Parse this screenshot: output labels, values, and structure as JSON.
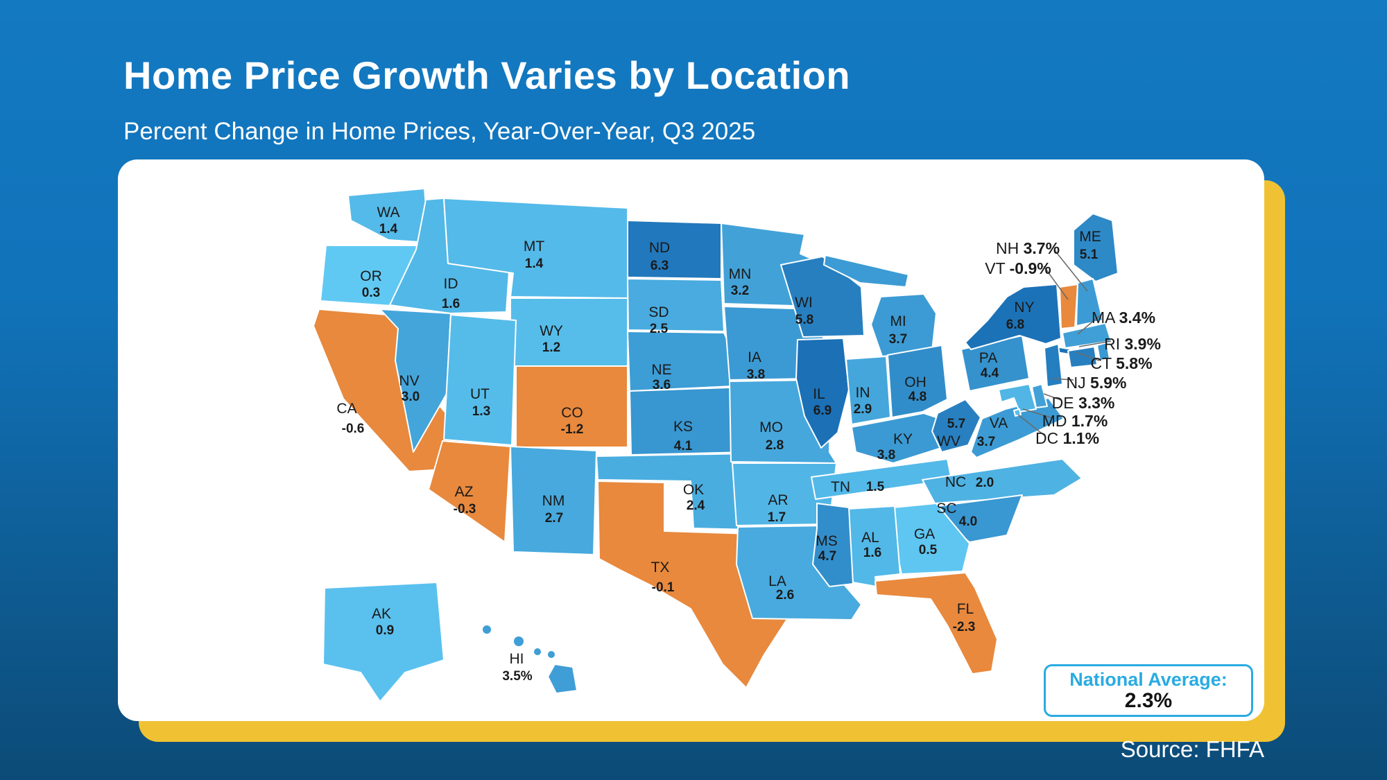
{
  "header": {
    "title": "Home Price Growth Varies by Location",
    "subtitle": "Percent Change in Home Prices, Year-Over-Year, Q3 2025"
  },
  "footer": {
    "source": "Source: FHFA"
  },
  "national_average_box": {
    "label": "National Average:",
    "value": "2.3%"
  },
  "colors": {
    "background_top": "#1379C1",
    "background_bottom": "#0C4B77",
    "card": "#FFFFFF",
    "gold_shadow": "#F0C233",
    "accent_blue": "#29ABE2",
    "negative_orange": "#E8893D",
    "scale_low": "#63CDF6",
    "scale_high": "#1A6FB5",
    "label_text": "#1A1A1A",
    "leader_line": "#6B6B6B"
  },
  "chart_data": {
    "type": "choropleth",
    "title": "Home Price Growth Varies by Location",
    "subtitle": "Percent Change in Home Prices, Year-Over-Year, Q3 2025",
    "unit": "percent change year-over-year",
    "national_average": 2.3,
    "source": "FHFA",
    "color_scale": {
      "negative": "#E8893D",
      "low": "#63CDF6",
      "high": "#1A6FB5",
      "domain": [
        0,
        7
      ]
    },
    "states": [
      {
        "abbr": "WA",
        "value": 1.4,
        "display": "1.4"
      },
      {
        "abbr": "OR",
        "value": 0.3,
        "display": "0.3"
      },
      {
        "abbr": "CA",
        "value": -0.6,
        "display": "-0.6"
      },
      {
        "abbr": "NV",
        "value": 3.0,
        "display": "3.0"
      },
      {
        "abbr": "ID",
        "value": 1.6,
        "display": "1.6"
      },
      {
        "abbr": "MT",
        "value": 1.4,
        "display": "1.4"
      },
      {
        "abbr": "WY",
        "value": 1.2,
        "display": "1.2"
      },
      {
        "abbr": "UT",
        "value": 1.3,
        "display": "1.3"
      },
      {
        "abbr": "CO",
        "value": -1.2,
        "display": "-1.2"
      },
      {
        "abbr": "AZ",
        "value": -0.3,
        "display": "-0.3"
      },
      {
        "abbr": "NM",
        "value": 2.7,
        "display": "2.7"
      },
      {
        "abbr": "ND",
        "value": 6.3,
        "display": "6.3"
      },
      {
        "abbr": "SD",
        "value": 2.5,
        "display": "2.5"
      },
      {
        "abbr": "NE",
        "value": 3.6,
        "display": "3.6"
      },
      {
        "abbr": "KS",
        "value": 4.1,
        "display": "4.1"
      },
      {
        "abbr": "OK",
        "value": 2.4,
        "display": "2.4"
      },
      {
        "abbr": "TX",
        "value": -0.1,
        "display": "-0.1"
      },
      {
        "abbr": "MN",
        "value": 3.2,
        "display": "3.2"
      },
      {
        "abbr": "IA",
        "value": 3.8,
        "display": "3.8"
      },
      {
        "abbr": "MO",
        "value": 2.8,
        "display": "2.8"
      },
      {
        "abbr": "AR",
        "value": 1.7,
        "display": "1.7"
      },
      {
        "abbr": "LA",
        "value": 2.6,
        "display": "2.6"
      },
      {
        "abbr": "WI",
        "value": 5.8,
        "display": "5.8"
      },
      {
        "abbr": "IL",
        "value": 6.9,
        "display": "6.9"
      },
      {
        "abbr": "IN",
        "value": 2.9,
        "display": "2.9"
      },
      {
        "abbr": "MI",
        "value": 3.7,
        "display": "3.7"
      },
      {
        "abbr": "OH",
        "value": 4.8,
        "display": "4.8"
      },
      {
        "abbr": "KY",
        "value": 3.8,
        "display": "3.8"
      },
      {
        "abbr": "TN",
        "value": 1.5,
        "display": "1.5"
      },
      {
        "abbr": "MS",
        "value": 4.7,
        "display": "4.7"
      },
      {
        "abbr": "AL",
        "value": 1.6,
        "display": "1.6"
      },
      {
        "abbr": "GA",
        "value": 0.5,
        "display": "0.5"
      },
      {
        "abbr": "FL",
        "value": -2.3,
        "display": "-2.3"
      },
      {
        "abbr": "SC",
        "value": 4.0,
        "display": "4.0"
      },
      {
        "abbr": "NC",
        "value": 2.0,
        "display": "2.0"
      },
      {
        "abbr": "VA",
        "value": 3.7,
        "display": "3.7"
      },
      {
        "abbr": "WV",
        "value": 5.7,
        "display": "5.7"
      },
      {
        "abbr": "PA",
        "value": 4.4,
        "display": "4.4"
      },
      {
        "abbr": "NY",
        "value": 6.8,
        "display": "6.8"
      },
      {
        "abbr": "ME",
        "value": 5.1,
        "display": "5.1"
      },
      {
        "abbr": "AK",
        "value": 0.9,
        "display": "0.9"
      },
      {
        "abbr": "HI",
        "value": 3.5,
        "display": "3.5%"
      }
    ],
    "callouts": [
      {
        "abbr": "NH",
        "value": 3.7,
        "display": "3.7%"
      },
      {
        "abbr": "VT",
        "value": -0.9,
        "display": "-0.9%"
      },
      {
        "abbr": "MA",
        "value": 3.4,
        "display": "3.4%"
      },
      {
        "abbr": "RI",
        "value": 3.9,
        "display": "3.9%"
      },
      {
        "abbr": "CT",
        "value": 5.8,
        "display": "5.8%"
      },
      {
        "abbr": "NJ",
        "value": 5.9,
        "display": "5.9%"
      },
      {
        "abbr": "DE",
        "value": 3.3,
        "display": "3.3%"
      },
      {
        "abbr": "MD",
        "value": 1.7,
        "display": "1.7%"
      },
      {
        "abbr": "DC",
        "value": 1.1,
        "display": "1.1%"
      }
    ]
  }
}
